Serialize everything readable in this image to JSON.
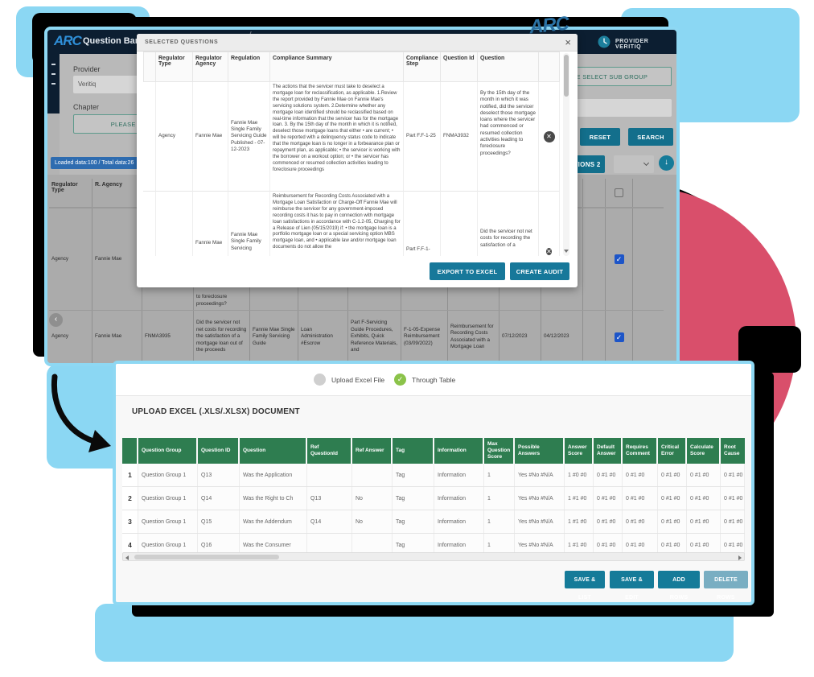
{
  "colors": {
    "accent_teal": "#157B99",
    "header_navy": "#0C1E31",
    "window_border": "#8ED8F3",
    "decor_blue": "#8BD7F3",
    "decor_pink": "#D94F6B",
    "table_header_green": "#2E7D50",
    "badge_blue": "#2E6CB0",
    "checkbox_blue": "#1D55C8",
    "radio_green": "#8BC34A"
  },
  "logo": "ARC",
  "top_window": {
    "title": "Question Bank",
    "user_menu": "PROVIDER VERITIQ",
    "provider_label": "Provider",
    "provider_value": "Veritiq",
    "chapter_label": "Chapter",
    "chapter_placeholder": "PLEASE SELECT CHAPTER",
    "subgroup_placeholder": "PLEASE SELECT SUB GROUP",
    "reset": "RESET",
    "search": "SEARCH",
    "loaded_badge": "Loaded data:100 / Total data:26",
    "selected_questions_button": "SELECTED QUESTIONS 2",
    "col_regulator_type": "Regulator Type",
    "col_r_agency": "R. Agency",
    "row1": {
      "type": "Agency",
      "agency": "Fannie Mae",
      "question_tail": "to foreclosure proceedings?"
    },
    "row2": {
      "type": "Agency",
      "agency": "Fannie Mae",
      "id": "FNMA3935",
      "question": "Did the servicer not net costs for recording the satisfaction of a mortgage loan out of the proceeds",
      "regulation": "Fannie Mae Single Family Servicing Guide",
      "tag": "Loan Administration #Escrow",
      "part": "Part F-Servicing Guide Procedures, Exhibits, Quick Reference Materials, and",
      "step": "F-1-05-Expense Reimbursement (03/09/2022)",
      "summary": "Reimbursement for Recording Costs Associated with a Mortgage Loan",
      "published": "07/12/2023",
      "effective": "04/12/2023"
    }
  },
  "modal": {
    "title": "SELECTED QUESTIONS",
    "close": "×",
    "headers": [
      "Regulator Type",
      "Regulator Agency",
      "Regulation",
      "Compliance Summary",
      "Compliance Step",
      "Question Id",
      "Question"
    ],
    "rows": [
      {
        "regulator_type": "Agency",
        "regulator_agency": "Fannie Mae",
        "regulation": "Fannie Mae Single Family Servicing Guide Published - 07-12-2023",
        "compliance_summary": "The actions that the servicer must take to deselect a mortgage loan for reclassification, as applicable. 1.Review the report provided by Fannie Mae on Fannie Mae's servicing solutions system. 2.Determine whether any mortgage loan identified should be reclassified based on real-time information that the servicer has for the mortgage loan. 3. By the 15th day of the month in which it is notified, deselect those mortgage loans that either • are current; • will be reported with a delinquency status code to indicate that the mortgage loan is no longer in a forbearance plan or repayment plan, as applicable; • the servicer is working with the borrower on a workout option; or • the servicer has commenced or resumed collection activities leading to foreclosure proceedings",
        "compliance_step": "Part F.F-1-25",
        "question_id": "FNMA3932",
        "question": "By the 15th day of the month in which it was notified, did the servicer deselect those mortgage loans where the servicer had commenced or resumed collection activities leading to foreclosure proceedings?"
      },
      {
        "regulator_agency": "Fannie Mae",
        "regulation": "Fannie Mae Single Family Servicing",
        "compliance_summary": "Reimbursement for Recording Costs Associated with a Mortgage Loan Satisfaction or Charge-Off Fannie Mae will reimburse the servicer for any government-imposed recording costs it has to pay in connection with mortgage loan satisfactions in accordance with C-1.2-05, Charging for a Release of Lien (05/15/2019) if: • the mortgage loan is a portfolio mortgage loan or a special servicing option MBS mortgage loan, and • applicable law and/or mortgage loan documents do not allow the",
        "compliance_step": "Part F.F-1-",
        "question": "Did the servicer not net costs for recording the satisfaction of a"
      }
    ],
    "export_button": "EXPORT TO EXCEL",
    "create_audit_button": "CREATE AUDIT"
  },
  "bottom_window": {
    "radio_upload": "Upload Excel File",
    "radio_table": "Through Table",
    "heading": "UPLOAD EXCEL (.XLS/.XLSX) DOCUMENT",
    "headers": [
      "",
      "Question Group",
      "Question ID",
      "Question",
      "Ref QuestionId",
      "Ref Answer",
      "Tag",
      "Information",
      "Max Question Score",
      "Possible Answers",
      "Answer Score",
      "Default Answer",
      "Requires Comment",
      "Critical Error",
      "Calculate Score",
      "Root Cause"
    ],
    "rows": [
      [
        "1",
        "Question Group 1",
        "Q13",
        "Was the Application",
        "",
        "",
        "Tag",
        "Information",
        "1",
        "Yes #No #N/A",
        "1 #0 #0",
        "0 #1 #0",
        "0 #1 #0",
        "0 #1 #0",
        "0 #1 #0",
        "0 #1 #0"
      ],
      [
        "2",
        "Question Group 1",
        "Q14",
        "Was the Right to Ch",
        "Q13",
        "No",
        "Tag",
        "Information",
        "1",
        "Yes #No #N/A",
        "1 #1 #0",
        "0 #1 #0",
        "0 #1 #0",
        "0 #1 #0",
        "0 #1 #0",
        "0 #1 #0"
      ],
      [
        "3",
        "Question Group 1",
        "Q15",
        "Was the Addendum",
        "Q14",
        "No",
        "Tag",
        "Information",
        "1",
        "Yes #No #N/A",
        "1 #1 #0",
        "0 #1 #0",
        "0 #1 #0",
        "0 #1 #0",
        "0 #1 #0",
        "0 #1 #0"
      ],
      [
        "4",
        "Question Group 1",
        "Q16",
        "Was the Consumer",
        "",
        "",
        "Tag",
        "Information",
        "1",
        "Yes #No #N/A",
        "1 #1 #0",
        "0 #1 #0",
        "0 #1 #0",
        "0 #1 #0",
        "0 #1 #0",
        "0 #1 #0"
      ]
    ],
    "buttons": [
      "SAVE & LIST",
      "SAVE & EDIT",
      "ADD ROWS",
      "DELETE ROWS"
    ]
  }
}
